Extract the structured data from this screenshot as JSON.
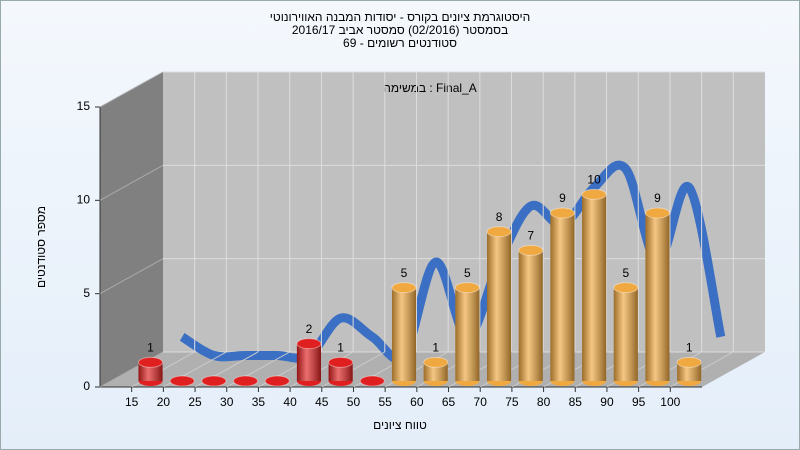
{
  "chart_data": {
    "type": "bar3d",
    "title": "היסטוגרמת ציונים בקורס - יסודות המבנה האווירונוטי",
    "subtitle": "בסמסטר  (02/2016)  סמסטר אביב 2016/17",
    "subtitle2": "סטודנטים רשומים - 69",
    "annotation": "במשימה : Final_A",
    "x_label": "טווח ציונים",
    "y_label": "מספר סטודנטים",
    "categories": [
      "15",
      "20",
      "25",
      "30",
      "35",
      "40",
      "45",
      "50",
      "55",
      "60",
      "65",
      "70",
      "75",
      "80",
      "85",
      "90",
      "95",
      "100"
    ],
    "values": [
      1,
      0,
      0,
      0,
      0,
      2,
      1,
      0,
      5,
      1,
      5,
      8,
      7,
      9,
      10,
      5,
      9,
      1
    ],
    "colors": [
      "#e02020",
      "#e02020",
      "#e02020",
      "#e02020",
      "#e02020",
      "#e02020",
      "#e02020",
      "#e02020",
      "#f0a840",
      "#f0a840",
      "#f0a840",
      "#f0a840",
      "#f0a840",
      "#f0a840",
      "#f0a840",
      "#f0a840",
      "#f0a840",
      "#f0a840"
    ],
    "line_color": "#3a6fc4",
    "ylim": [
      0,
      15
    ],
    "yticks": [
      0,
      5,
      10,
      15
    ],
    "grid": true
  }
}
